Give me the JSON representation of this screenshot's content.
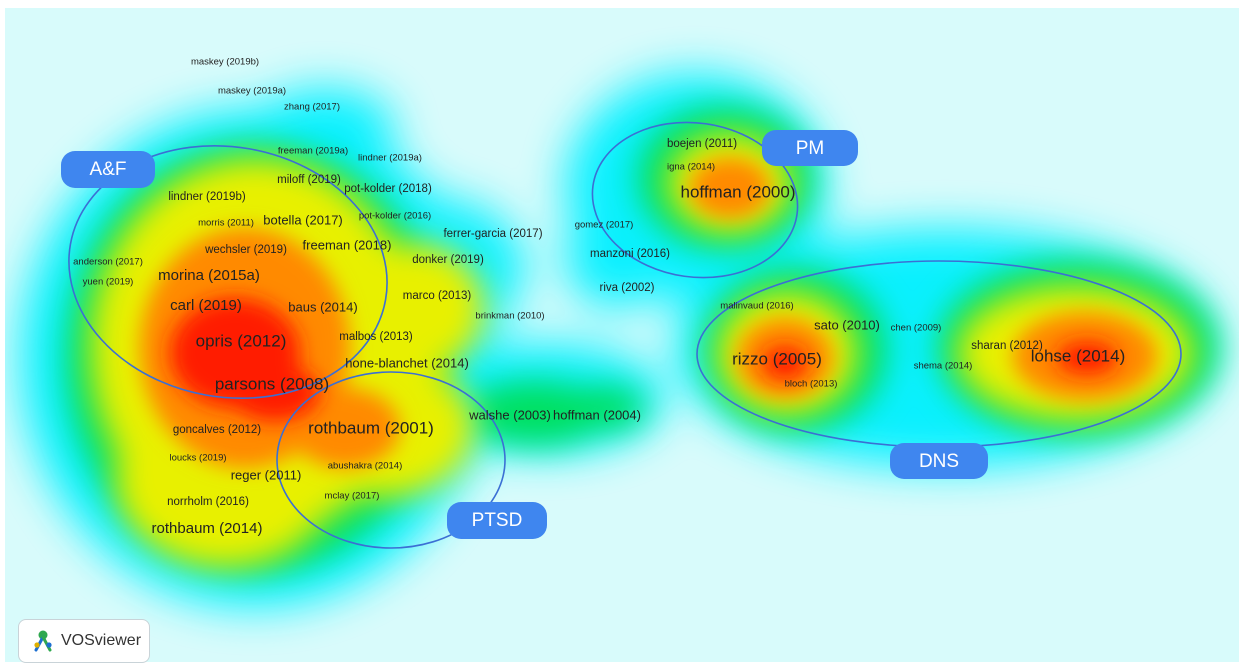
{
  "app": {
    "brand_name": "VOSviewer",
    "brand_icon": "vosviewer-logo-icon"
  },
  "colors": {
    "background": "#d8fbfb",
    "density_low": "#00f0ff",
    "density_mid_low": "#00e060",
    "density_mid": "#e8f000",
    "density_high": "#ff8a00",
    "density_peak": "#ff1a00",
    "cluster_ring": "#3b6fd4",
    "cluster_tag": "#3f86ef"
  },
  "clusters": [
    {
      "id": "af",
      "label": "A&F"
    },
    {
      "id": "pm",
      "label": "PM"
    },
    {
      "id": "dns",
      "label": "DNS"
    },
    {
      "id": "ptsd",
      "label": "PTSD"
    }
  ],
  "nodes": [
    {
      "label": "maskey (2019b)",
      "weight": 1
    },
    {
      "label": "maskey (2019a)",
      "weight": 1
    },
    {
      "label": "zhang (2017)",
      "weight": 1
    },
    {
      "label": "freeman (2019a)",
      "weight": 1
    },
    {
      "label": "lindner (2019a)",
      "weight": 1
    },
    {
      "label": "miloff (2019)",
      "weight": 2
    },
    {
      "label": "pot-kolder (2018)",
      "weight": 2
    },
    {
      "label": "lindner (2019b)",
      "weight": 2
    },
    {
      "label": "botella (2017)",
      "weight": 3
    },
    {
      "label": "pot-kolder (2016)",
      "weight": 1
    },
    {
      "label": "morris (2011)",
      "weight": 1
    },
    {
      "label": "freeman (2018)",
      "weight": 3
    },
    {
      "label": "ferrer-garcia (2017)",
      "weight": 2
    },
    {
      "label": "wechsler (2019)",
      "weight": 2
    },
    {
      "label": "donker (2019)",
      "weight": 2
    },
    {
      "label": "anderson (2017)",
      "weight": 1
    },
    {
      "label": "morina (2015a)",
      "weight": 4
    },
    {
      "label": "yuen (2019)",
      "weight": 1
    },
    {
      "label": "marco (2013)",
      "weight": 2
    },
    {
      "label": "carl (2019)",
      "weight": 4
    },
    {
      "label": "baus (2014)",
      "weight": 3
    },
    {
      "label": "brinkman (2010)",
      "weight": 1
    },
    {
      "label": "malbos (2013)",
      "weight": 2
    },
    {
      "label": "opris (2012)",
      "weight": 5
    },
    {
      "label": "hone-blanchet (2014)",
      "weight": 3
    },
    {
      "label": "parsons (2008)",
      "weight": 5
    },
    {
      "label": "rothbaum (2001)",
      "weight": 5
    },
    {
      "label": "walshe (2003)",
      "weight": 3
    },
    {
      "label": "hoffman (2004)",
      "weight": 3
    },
    {
      "label": "goncalves (2012)",
      "weight": 2
    },
    {
      "label": "loucks (2019)",
      "weight": 1
    },
    {
      "label": "abushakra (2014)",
      "weight": 1
    },
    {
      "label": "reger (2011)",
      "weight": 3
    },
    {
      "label": "mclay (2017)",
      "weight": 1
    },
    {
      "label": "norrholm (2016)",
      "weight": 2
    },
    {
      "label": "rothbaum (2014)",
      "weight": 4
    },
    {
      "label": "boejen (2011)",
      "weight": 2
    },
    {
      "label": "igna (2014)",
      "weight": 1
    },
    {
      "label": "hoffman (2000)",
      "weight": 5
    },
    {
      "label": "gomez (2017)",
      "weight": 1
    },
    {
      "label": "manzoni (2016)",
      "weight": 2
    },
    {
      "label": "riva (2002)",
      "weight": 2
    },
    {
      "label": "malinvaud (2016)",
      "weight": 1
    },
    {
      "label": "sato (2010)",
      "weight": 3
    },
    {
      "label": "chen (2009)",
      "weight": 1
    },
    {
      "label": "rizzo (2005)",
      "weight": 5
    },
    {
      "label": "sharan (2012)",
      "weight": 2
    },
    {
      "label": "shema (2014)",
      "weight": 1
    },
    {
      "label": "lohse (2014)",
      "weight": 5
    },
    {
      "label": "bloch (2013)",
      "weight": 1
    }
  ]
}
